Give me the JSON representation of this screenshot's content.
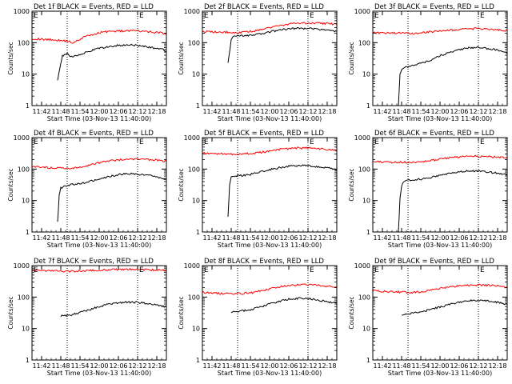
{
  "figure": {
    "background": "#ffffff",
    "colors": {
      "events": "#000000",
      "lld": "#ff0000",
      "axis": "#000000"
    }
  },
  "chart_data": [
    {
      "type": "line",
      "title": "Det 1f BLACK = Events, RED = LLD",
      "xlabel": "Start Time (03-Nov-13 11:40:00)",
      "ylabel": "Counts/sec",
      "yscale": "log",
      "ylim": [
        1,
        1000
      ],
      "xlim": [
        0,
        42
      ],
      "xticks": [
        "11:42",
        "11:48",
        "11:54",
        "12:00",
        "12:06",
        "12:12",
        "12:18"
      ],
      "yticks": [
        "1",
        "10",
        "100",
        "1000"
      ],
      "markers": [
        11,
        33
      ],
      "marker_labels": [
        "E",
        "E"
      ],
      "series": [
        {
          "color": "#ff0000",
          "x": [
            0,
            3,
            6,
            9,
            11,
            13,
            16,
            19,
            22,
            25,
            28,
            31,
            34,
            37,
            40,
            42
          ],
          "values": [
            135,
            128,
            125,
            118,
            112,
            98,
            150,
            180,
            220,
            230,
            235,
            240,
            230,
            220,
            210,
            190
          ]
        },
        {
          "color": "#000000",
          "x": [
            8,
            9,
            9.5,
            10,
            11,
            12,
            14,
            17,
            20,
            23,
            26,
            29,
            32,
            35,
            38,
            41,
            42
          ],
          "values": [
            6,
            22,
            38,
            40,
            44,
            36,
            40,
            50,
            62,
            72,
            80,
            85,
            83,
            76,
            68,
            60,
            50
          ]
        }
      ]
    },
    {
      "type": "line",
      "title": "Det 2f BLACK = Events, RED = LLD",
      "xlabel": "Start Time (03-Nov-13 11:40:00)",
      "ylabel": "Counts/sec",
      "yscale": "log",
      "ylim": [
        1,
        1000
      ],
      "xlim": [
        0,
        42
      ],
      "xticks": [
        "11:42",
        "11:48",
        "11:54",
        "12:00",
        "12:06",
        "12:12",
        "12:18"
      ],
      "yticks": [
        "1",
        "10",
        "100",
        "1000"
      ],
      "markers": [
        11,
        33
      ],
      "marker_labels": [
        "E",
        "E"
      ],
      "series": [
        {
          "color": "#ff0000",
          "x": [
            0,
            4,
            8,
            12,
            16,
            20,
            24,
            28,
            32,
            36,
            40,
            42
          ],
          "values": [
            230,
            220,
            215,
            210,
            230,
            280,
            350,
            400,
            420,
            420,
            400,
            380
          ]
        },
        {
          "color": "#000000",
          "x": [
            8,
            9,
            9.5,
            10,
            14,
            18,
            22,
            26,
            30,
            34,
            38,
            42
          ],
          "values": [
            22,
            120,
            160,
            165,
            170,
            190,
            230,
            270,
            290,
            280,
            250,
            230
          ]
        }
      ]
    },
    {
      "type": "line",
      "title": "Det 3f BLACK = Events, RED = LLD",
      "xlabel": "Start Time (03-Nov-13 11:40:00)",
      "ylabel": "Counts/sec",
      "yscale": "log",
      "ylim": [
        1,
        1000
      ],
      "xlim": [
        0,
        42
      ],
      "xticks": [
        "11:42",
        "11:48",
        "11:54",
        "12:00",
        "12:06",
        "12:12",
        "12:18"
      ],
      "yticks": [
        "1",
        "10",
        "100",
        "1000"
      ],
      "markers": [
        11,
        33
      ],
      "marker_labels": [
        "E",
        "E"
      ],
      "series": [
        {
          "color": "#ff0000",
          "x": [
            0,
            4,
            8,
            12,
            16,
            20,
            24,
            28,
            32,
            36,
            40,
            42
          ],
          "values": [
            210,
            200,
            205,
            195,
            210,
            230,
            250,
            270,
            280,
            270,
            255,
            240
          ]
        },
        {
          "color": "#000000",
          "x": [
            8,
            8.5,
            9,
            10,
            12,
            15,
            18,
            21,
            24,
            27,
            30,
            33,
            36,
            39,
            42
          ],
          "values": [
            1,
            10,
            14,
            16,
            18,
            22,
            28,
            38,
            50,
            60,
            68,
            72,
            65,
            58,
            45
          ]
        }
      ]
    },
    {
      "type": "line",
      "title": "Det 4f BLACK = Events, RED = LLD",
      "xlabel": "Start Time (03-Nov-13 11:40:00)",
      "ylabel": "Counts/sec",
      "yscale": "log",
      "ylim": [
        1,
        1000
      ],
      "xlim": [
        0,
        42
      ],
      "xticks": [
        "11:42",
        "11:48",
        "11:54",
        "12:00",
        "12:06",
        "12:12",
        "12:18"
      ],
      "yticks": [
        "1",
        "10",
        "100",
        "1000"
      ],
      "markers": [
        11,
        33
      ],
      "marker_labels": [
        "E",
        "E"
      ],
      "series": [
        {
          "color": "#ff0000",
          "x": [
            0,
            4,
            8,
            12,
            16,
            20,
            24,
            28,
            32,
            36,
            40,
            42
          ],
          "values": [
            120,
            112,
            108,
            102,
            118,
            150,
            180,
            200,
            205,
            200,
            190,
            175
          ]
        },
        {
          "color": "#000000",
          "x": [
            8,
            8.5,
            9,
            10,
            12,
            15,
            18,
            21,
            24,
            27,
            30,
            33,
            36,
            39,
            42
          ],
          "values": [
            2,
            15,
            25,
            28,
            32,
            34,
            40,
            48,
            58,
            66,
            72,
            70,
            64,
            56,
            48
          ]
        }
      ]
    },
    {
      "type": "line",
      "title": "Det 5f BLACK = Events, RED = LLD",
      "xlabel": "Start Time (03-Nov-13 11:40:00)",
      "ylabel": "Counts/sec",
      "yscale": "log",
      "ylim": [
        1,
        1000
      ],
      "xlim": [
        0,
        42
      ],
      "xticks": [
        "11:42",
        "11:48",
        "11:54",
        "12:00",
        "12:06",
        "12:12",
        "12:18"
      ],
      "yticks": [
        "1",
        "10",
        "100",
        "1000"
      ],
      "markers": [
        11,
        33
      ],
      "marker_labels": [
        "E",
        "E"
      ],
      "series": [
        {
          "color": "#ff0000",
          "x": [
            0,
            4,
            8,
            12,
            16,
            20,
            24,
            28,
            32,
            36,
            40,
            42
          ],
          "values": [
            320,
            310,
            300,
            300,
            320,
            360,
            420,
            460,
            470,
            450,
            410,
            380
          ]
        },
        {
          "color": "#000000",
          "x": [
            8,
            8.5,
            9,
            10,
            12,
            15,
            18,
            21,
            24,
            27,
            30,
            33,
            36,
            39,
            42
          ],
          "values": [
            3,
            30,
            55,
            60,
            62,
            68,
            80,
            95,
            110,
            125,
            130,
            128,
            120,
            110,
            95
          ]
        }
      ]
    },
    {
      "type": "line",
      "title": "Det 6f BLACK = Events, RED = LLD",
      "xlabel": "Start Time (03-Nov-13 11:40:00)",
      "ylabel": "Counts/sec",
      "yscale": "log",
      "ylim": [
        1,
        1000
      ],
      "xlim": [
        0,
        42
      ],
      "xticks": [
        "11:42",
        "11:48",
        "11:54",
        "12:00",
        "12:06",
        "12:12",
        "12:18"
      ],
      "yticks": [
        "1",
        "10",
        "100",
        "1000"
      ],
      "markers": [
        11,
        33
      ],
      "marker_labels": [
        "E",
        "E"
      ],
      "series": [
        {
          "color": "#ff0000",
          "x": [
            0,
            4,
            8,
            12,
            16,
            20,
            24,
            28,
            32,
            36,
            40,
            42
          ],
          "values": [
            175,
            168,
            165,
            162,
            172,
            200,
            230,
            250,
            255,
            250,
            235,
            220
          ]
        },
        {
          "color": "#000000",
          "x": [
            8,
            8.5,
            9,
            10,
            12,
            15,
            18,
            21,
            24,
            27,
            30,
            33,
            36,
            39,
            42
          ],
          "values": [
            1,
            12,
            30,
            42,
            45,
            48,
            55,
            62,
            72,
            82,
            88,
            86,
            80,
            74,
            65
          ]
        }
      ]
    },
    {
      "type": "line",
      "title": "Det 7f BLACK = Events, RED = LLD",
      "xlabel": "Start Time (03-Nov-13 11:40:00)",
      "ylabel": "Counts/sec",
      "yscale": "log",
      "ylim": [
        1,
        1000
      ],
      "xlim": [
        0,
        42
      ],
      "xticks": [
        "11:42",
        "11:48",
        "11:54",
        "12:00",
        "12:06",
        "12:12",
        "12:18"
      ],
      "yticks": [
        "1",
        "10",
        "100",
        "1000"
      ],
      "markers": [
        11,
        33
      ],
      "marker_labels": [
        "E",
        "E"
      ],
      "series": [
        {
          "color": "#ff0000",
          "x": [
            0,
            3,
            6,
            9,
            12,
            15,
            18,
            21,
            24,
            27,
            30,
            33,
            36,
            39,
            42
          ],
          "values": [
            700,
            690,
            680,
            670,
            660,
            680,
            700,
            720,
            740,
            750,
            760,
            750,
            740,
            720,
            700
          ]
        },
        {
          "color": "#000000",
          "x": [
            9,
            12,
            15,
            18,
            21,
            24,
            27,
            30,
            33,
            36,
            39,
            42
          ],
          "values": [
            25,
            27,
            32,
            40,
            50,
            60,
            66,
            70,
            68,
            62,
            55,
            48
          ]
        }
      ]
    },
    {
      "type": "line",
      "title": "Det 8f BLACK = Events, RED = LLD",
      "xlabel": "Start Time (03-Nov-13 11:40:00)",
      "ylabel": "Counts/sec",
      "yscale": "log",
      "ylim": [
        1,
        1000
      ],
      "xlim": [
        0,
        42
      ],
      "xticks": [
        "11:42",
        "11:48",
        "11:54",
        "12:00",
        "12:06",
        "12:12",
        "12:18"
      ],
      "yticks": [
        "1",
        "10",
        "100",
        "1000"
      ],
      "markers": [
        11,
        33
      ],
      "marker_labels": [
        "E",
        "E"
      ],
      "series": [
        {
          "color": "#ff0000",
          "x": [
            0,
            4,
            8,
            12,
            16,
            20,
            24,
            28,
            32,
            36,
            40,
            42
          ],
          "values": [
            140,
            132,
            130,
            128,
            140,
            170,
            210,
            240,
            245,
            235,
            215,
            195
          ]
        },
        {
          "color": "#000000",
          "x": [
            9,
            12,
            15,
            18,
            21,
            24,
            27,
            30,
            33,
            36,
            39,
            42
          ],
          "values": [
            32,
            36,
            40,
            48,
            60,
            74,
            86,
            92,
            90,
            82,
            72,
            62
          ]
        }
      ]
    },
    {
      "type": "line",
      "title": "Det 9f BLACK = Events, RED = LLD",
      "xlabel": "Start Time (03-Nov-13 11:40:00)",
      "ylabel": "Counts/sec",
      "yscale": "log",
      "ylim": [
        1,
        1000
      ],
      "xlim": [
        0,
        42
      ],
      "xticks": [
        "11:42",
        "11:48",
        "11:54",
        "12:00",
        "12:06",
        "12:12",
        "12:18"
      ],
      "yticks": [
        "1",
        "10",
        "100",
        "1000"
      ],
      "markers": [
        11,
        33
      ],
      "marker_labels": [
        "E",
        "E"
      ],
      "series": [
        {
          "color": "#ff0000",
          "x": [
            0,
            4,
            8,
            12,
            16,
            20,
            24,
            28,
            32,
            36,
            40,
            42
          ],
          "values": [
            160,
            150,
            145,
            140,
            150,
            180,
            210,
            230,
            240,
            235,
            220,
            200
          ]
        },
        {
          "color": "#000000",
          "x": [
            9,
            12,
            15,
            18,
            21,
            24,
            27,
            30,
            33,
            36,
            39,
            42
          ],
          "values": [
            28,
            30,
            34,
            40,
            48,
            58,
            68,
            76,
            80,
            76,
            68,
            58
          ]
        }
      ]
    }
  ]
}
